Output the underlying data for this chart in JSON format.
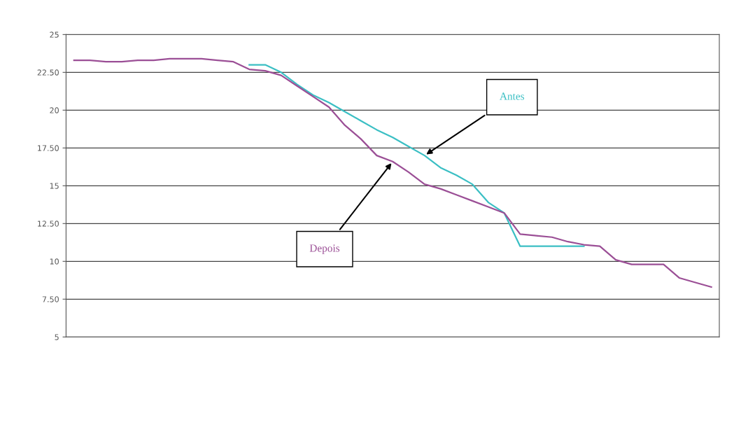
{
  "chart_data": {
    "type": "line",
    "categories": [
      null,
      null,
      null,
      null,
      null,
      null,
      null,
      null,
      null,
      null,
      null,
      null,
      null,
      null,
      null,
      null,
      null,
      null,
      null,
      null,
      null,
      null,
      null,
      null,
      null,
      null,
      null,
      null,
      null,
      null,
      null,
      null,
      null,
      null,
      null,
      null,
      null,
      null,
      null,
      null,
      null
    ],
    "series": [
      {
        "name": "Antes",
        "color": "#3bbfc4",
        "values": [
          null,
          null,
          null,
          null,
          null,
          null,
          null,
          null,
          null,
          null,
          null,
          23.0,
          23.0,
          22.5,
          21.7,
          21.0,
          20.5,
          19.9,
          19.3,
          18.7,
          18.2,
          17.6,
          17.0,
          16.2,
          15.7,
          15.1,
          13.9,
          13.2,
          11.0,
          11.0,
          11.0,
          11.0,
          11.0,
          null,
          null,
          null,
          null,
          null,
          null,
          null,
          null
        ]
      },
      {
        "name": "Depois",
        "color": "#9b4f96",
        "values": [
          23.3,
          23.3,
          23.2,
          23.2,
          23.3,
          23.3,
          23.4,
          23.4,
          23.4,
          23.3,
          23.2,
          22.7,
          22.6,
          22.3,
          21.6,
          20.9,
          20.2,
          19.0,
          18.1,
          17.0,
          16.6,
          15.9,
          15.1,
          14.8,
          14.4,
          14.0,
          13.6,
          13.2,
          11.8,
          11.7,
          11.6,
          11.3,
          11.1,
          11.0,
          10.1,
          9.8,
          9.8,
          9.8,
          8.9,
          8.6,
          8.3
        ]
      }
    ],
    "ylim": [
      5,
      25
    ],
    "yticks": [
      5,
      {
        "value": 7.5,
        "label": "7.50"
      },
      10,
      {
        "value": 12.5,
        "label": "12.50"
      },
      15,
      {
        "value": 17.5,
        "label": "17.50"
      },
      20,
      {
        "value": 22.5,
        "label": "22.50"
      },
      25
    ],
    "grid": "y",
    "tick_labels": "y",
    "legend": false,
    "marker": "none",
    "line_style": "solid"
  }
}
